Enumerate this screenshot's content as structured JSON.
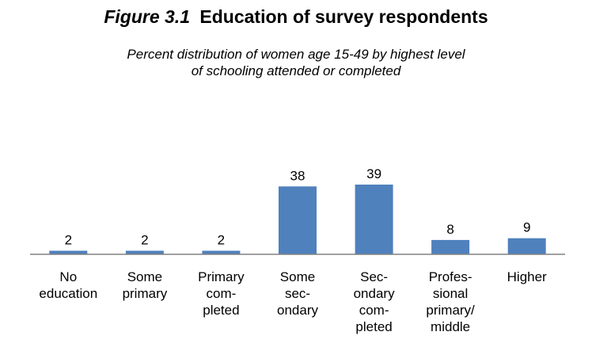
{
  "figure": {
    "label": "Figure 3.1",
    "title": "Education of survey respondents",
    "subtitle_line1": "Percent distribution of women age 15-49 by highest level",
    "subtitle_line2": "of schooling attended or completed"
  },
  "colors": {
    "bar": "#4f81bd",
    "axis": "#808080",
    "text": "#000000"
  },
  "chart_data": {
    "type": "bar",
    "title": "Education of survey respondents",
    "categories": [
      [
        "No",
        "education"
      ],
      [
        "Some",
        "primary"
      ],
      [
        "Primary",
        "com-",
        "pleted"
      ],
      [
        "Some",
        "sec-",
        "ondary"
      ],
      [
        "Sec-",
        "ondary",
        "com-",
        "pleted"
      ],
      [
        "Profes-",
        "sional",
        "primary/",
        "middle"
      ],
      [
        "Higher"
      ]
    ],
    "values": [
      2,
      2,
      2,
      38,
      39,
      8,
      9
    ],
    "data_labels": [
      "2",
      "2",
      "2",
      "38",
      "39",
      "8",
      "9"
    ],
    "ylim": [
      0,
      40
    ],
    "grid": false,
    "legend": "none"
  }
}
